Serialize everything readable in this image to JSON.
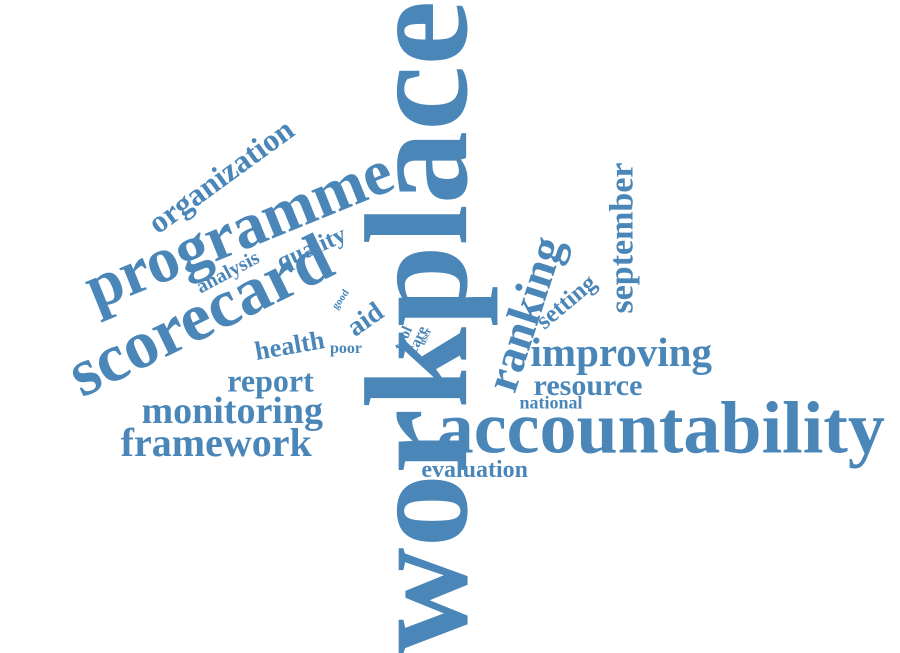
{
  "word_cloud": {
    "color": "#4a86b8",
    "words": [
      {
        "id": "workplace",
        "text": "workplace"
      },
      {
        "id": "accountability",
        "text": "accountability"
      },
      {
        "id": "scorecard",
        "text": "scorecard"
      },
      {
        "id": "programme",
        "text": "programme"
      },
      {
        "id": "ranking",
        "text": "ranking"
      },
      {
        "id": "september",
        "text": "september"
      },
      {
        "id": "improving",
        "text": "improving"
      },
      {
        "id": "monitoring",
        "text": "monitoring"
      },
      {
        "id": "framework",
        "text": "framework"
      },
      {
        "id": "resource",
        "text": "resource"
      },
      {
        "id": "organization",
        "text": "organization"
      },
      {
        "id": "report",
        "text": "report"
      },
      {
        "id": "evaluation",
        "text": "evaluation"
      },
      {
        "id": "health",
        "text": "health"
      },
      {
        "id": "aid",
        "text": "aid"
      },
      {
        "id": "quality",
        "text": "quality"
      },
      {
        "id": "setting",
        "text": "setting"
      },
      {
        "id": "national",
        "text": "national"
      },
      {
        "id": "analysis",
        "text": "analysis"
      },
      {
        "id": "poor",
        "text": "poor"
      },
      {
        "id": "tool",
        "text": "tool"
      },
      {
        "id": "care",
        "text": "care"
      },
      {
        "id": "good",
        "text": "good"
      },
      {
        "id": "user",
        "text": "user"
      }
    ]
  }
}
